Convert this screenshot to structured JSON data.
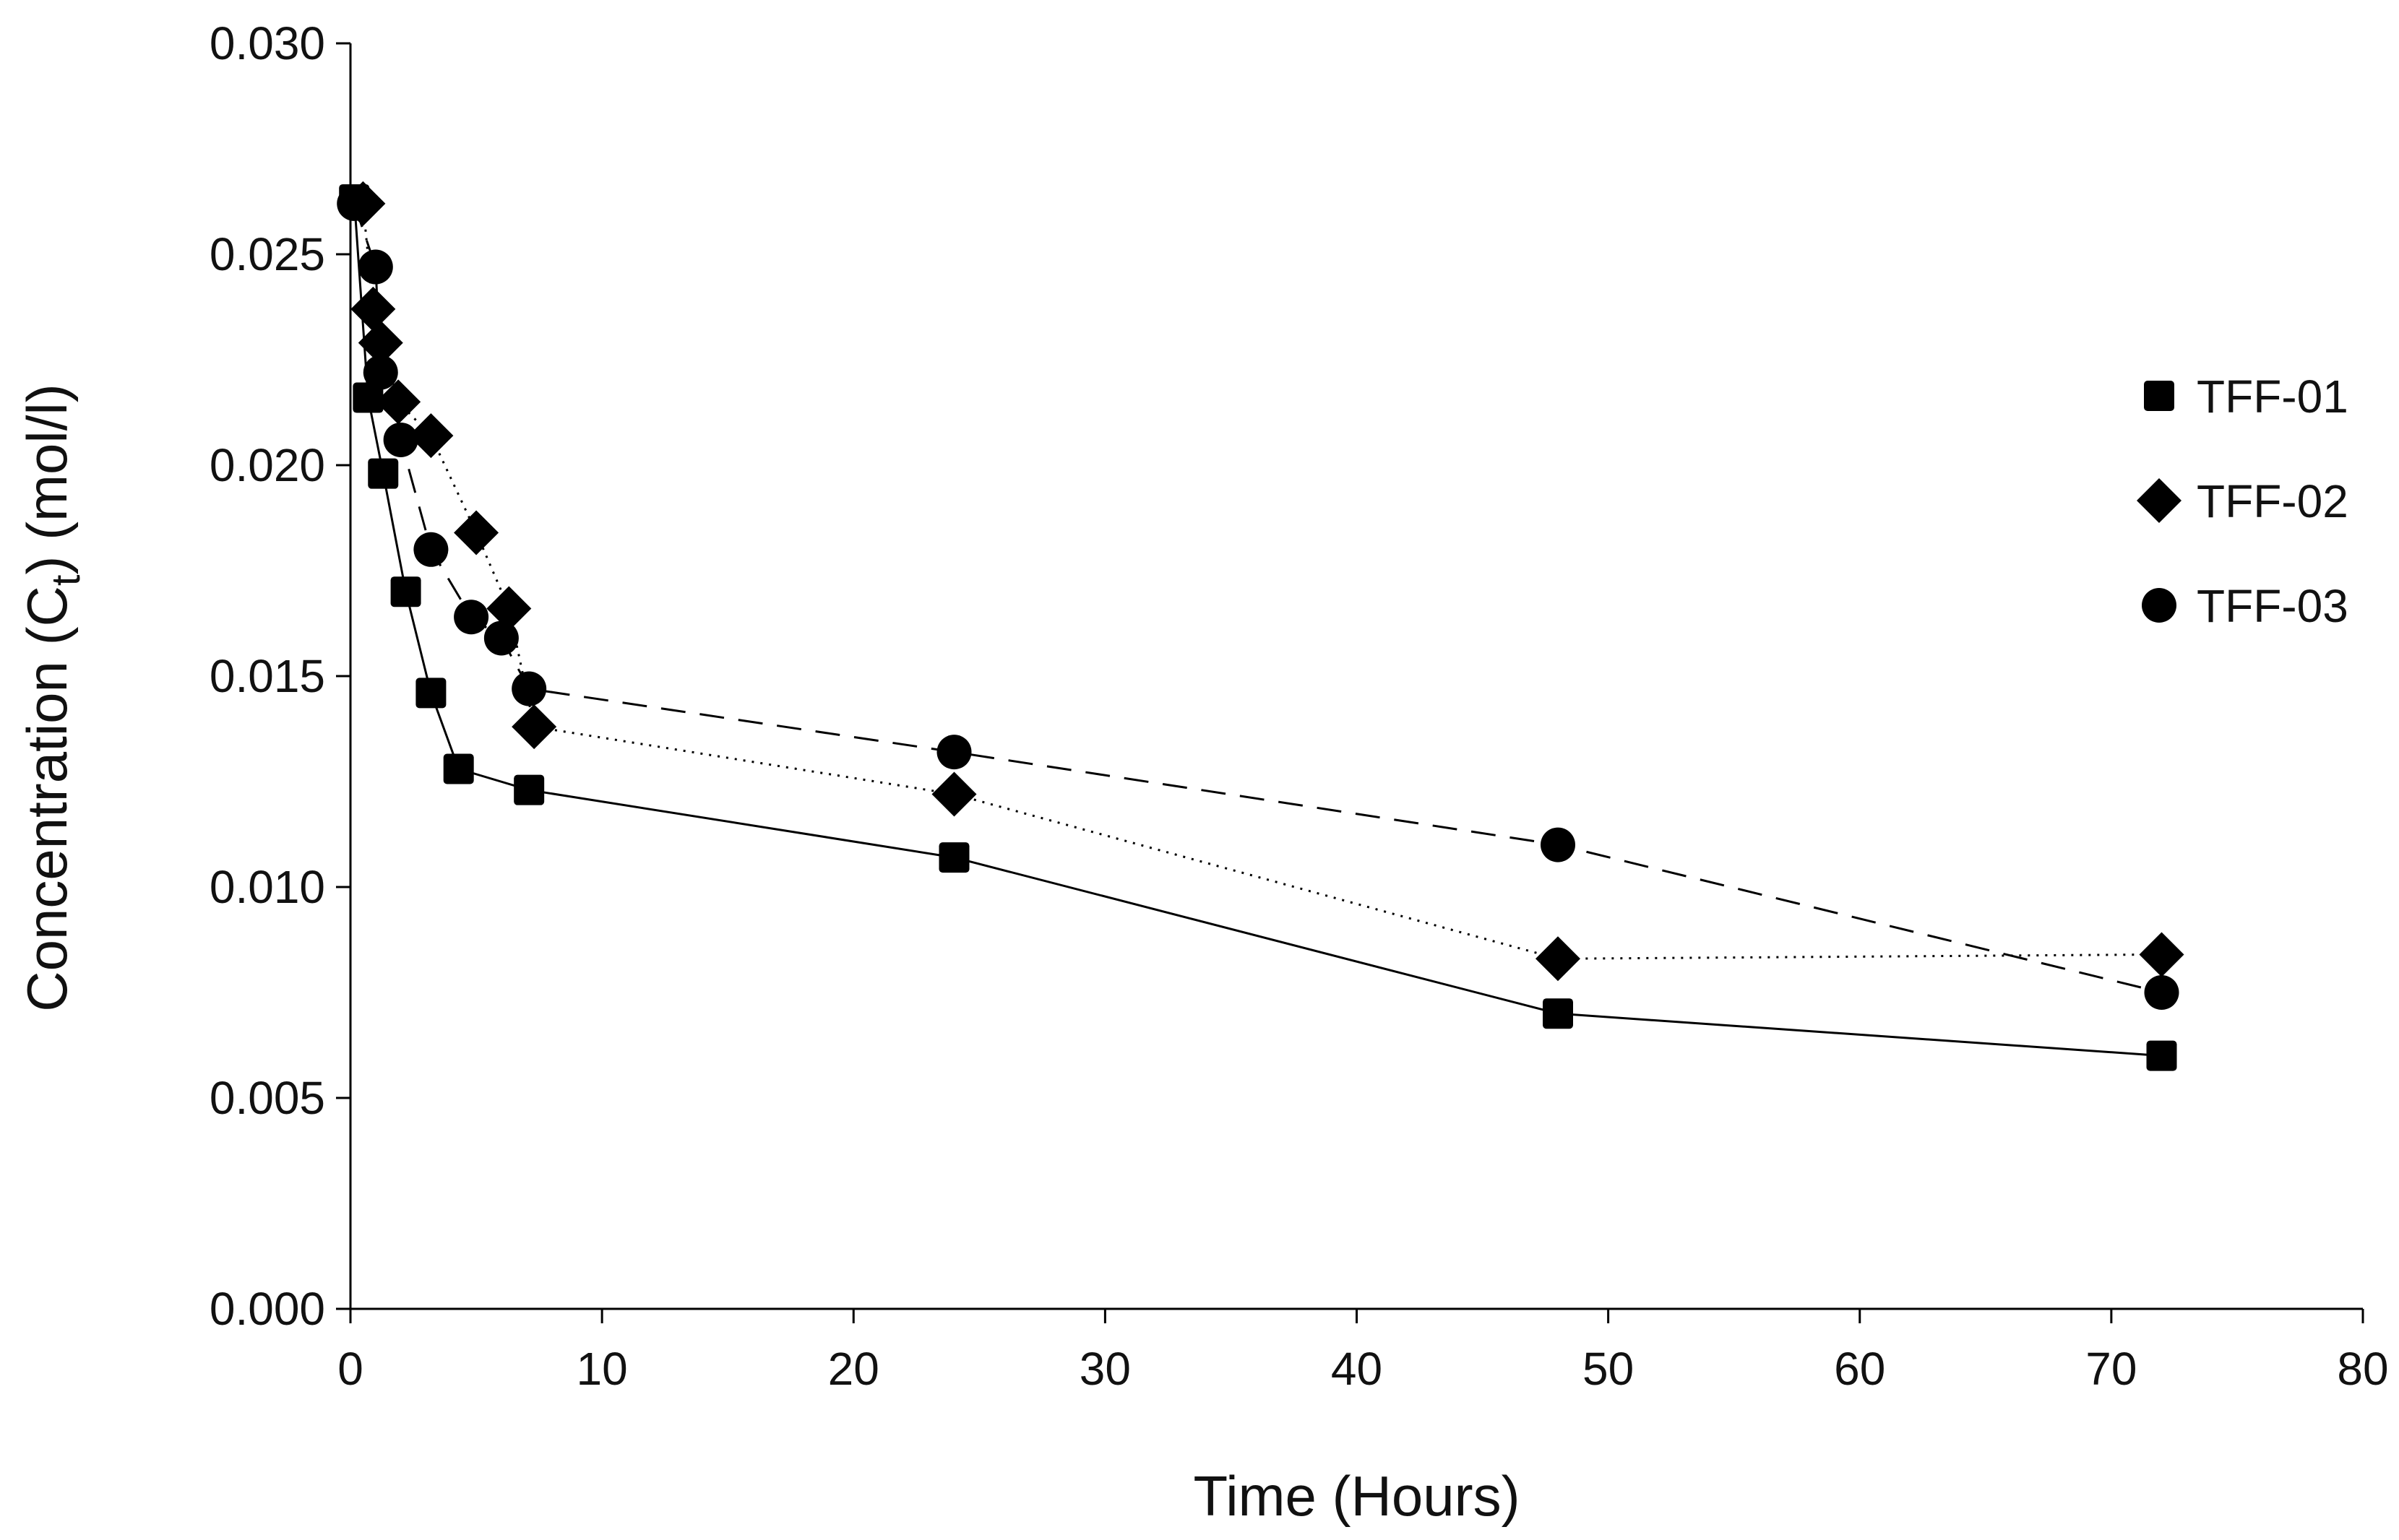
{
  "chart_data": {
    "type": "scatter",
    "title": "",
    "xlabel": "Time (Hours)",
    "ylabel_main": "Concentration (C",
    "ylabel_sub": "t",
    "ylabel_tail": ") (mol/l)",
    "xlim": [
      0,
      80
    ],
    "ylim": [
      0,
      0.03
    ],
    "xticks": [
      0,
      10,
      20,
      30,
      40,
      50,
      60,
      70,
      80
    ],
    "xtick_labels": [
      "0",
      "10",
      "20",
      "30",
      "40",
      "50",
      "60",
      "70",
      "80"
    ],
    "yticks": [
      0,
      0.005,
      0.01,
      0.015,
      0.02,
      0.025,
      0.03
    ],
    "ytick_labels": [
      "0.000",
      "0.005",
      "0.010",
      "0.015",
      "0.020",
      "0.025",
      "0.030"
    ],
    "grid": false,
    "legend_position": "right",
    "series": [
      {
        "name": "TFF-01",
        "marker": "square",
        "line_style": "solid",
        "color": "#000000",
        "points": [
          {
            "x": 0.15,
            "y": 0.0263
          },
          {
            "x": 0.7,
            "y": 0.0216
          },
          {
            "x": 1.3,
            "y": 0.0198
          },
          {
            "x": 2.2,
            "y": 0.017
          },
          {
            "x": 3.2,
            "y": 0.0146
          },
          {
            "x": 4.3,
            "y": 0.0128
          },
          {
            "x": 7.1,
            "y": 0.0123
          },
          {
            "x": 24.0,
            "y": 0.0107
          },
          {
            "x": 48.0,
            "y": 0.007
          },
          {
            "x": 72.0,
            "y": 0.006
          }
        ]
      },
      {
        "name": "TFF-02",
        "marker": "diamond",
        "line_style": "dotted",
        "color": "#000000",
        "points": [
          {
            "x": 0.5,
            "y": 0.0262
          },
          {
            "x": 0.9,
            "y": 0.0237
          },
          {
            "x": 1.2,
            "y": 0.0229
          },
          {
            "x": 1.9,
            "y": 0.0215
          },
          {
            "x": 3.2,
            "y": 0.0207
          },
          {
            "x": 5.0,
            "y": 0.0184
          },
          {
            "x": 6.3,
            "y": 0.0166
          },
          {
            "x": 7.3,
            "y": 0.0138
          },
          {
            "x": 24.0,
            "y": 0.0122
          },
          {
            "x": 48.0,
            "y": 0.0083
          },
          {
            "x": 72.0,
            "y": 0.0084
          }
        ]
      },
      {
        "name": "TFF-03",
        "marker": "circle",
        "line_style": "dashed",
        "color": "#000000",
        "points": [
          {
            "x": 0.15,
            "y": 0.0262
          },
          {
            "x": 1.0,
            "y": 0.0247
          },
          {
            "x": 1.2,
            "y": 0.0222
          },
          {
            "x": 2.0,
            "y": 0.0206
          },
          {
            "x": 3.2,
            "y": 0.018
          },
          {
            "x": 4.8,
            "y": 0.0164
          },
          {
            "x": 6.0,
            "y": 0.0159
          },
          {
            "x": 7.1,
            "y": 0.0147
          },
          {
            "x": 24.0,
            "y": 0.0132
          },
          {
            "x": 48.0,
            "y": 0.011
          },
          {
            "x": 72.0,
            "y": 0.0075
          }
        ]
      }
    ]
  }
}
